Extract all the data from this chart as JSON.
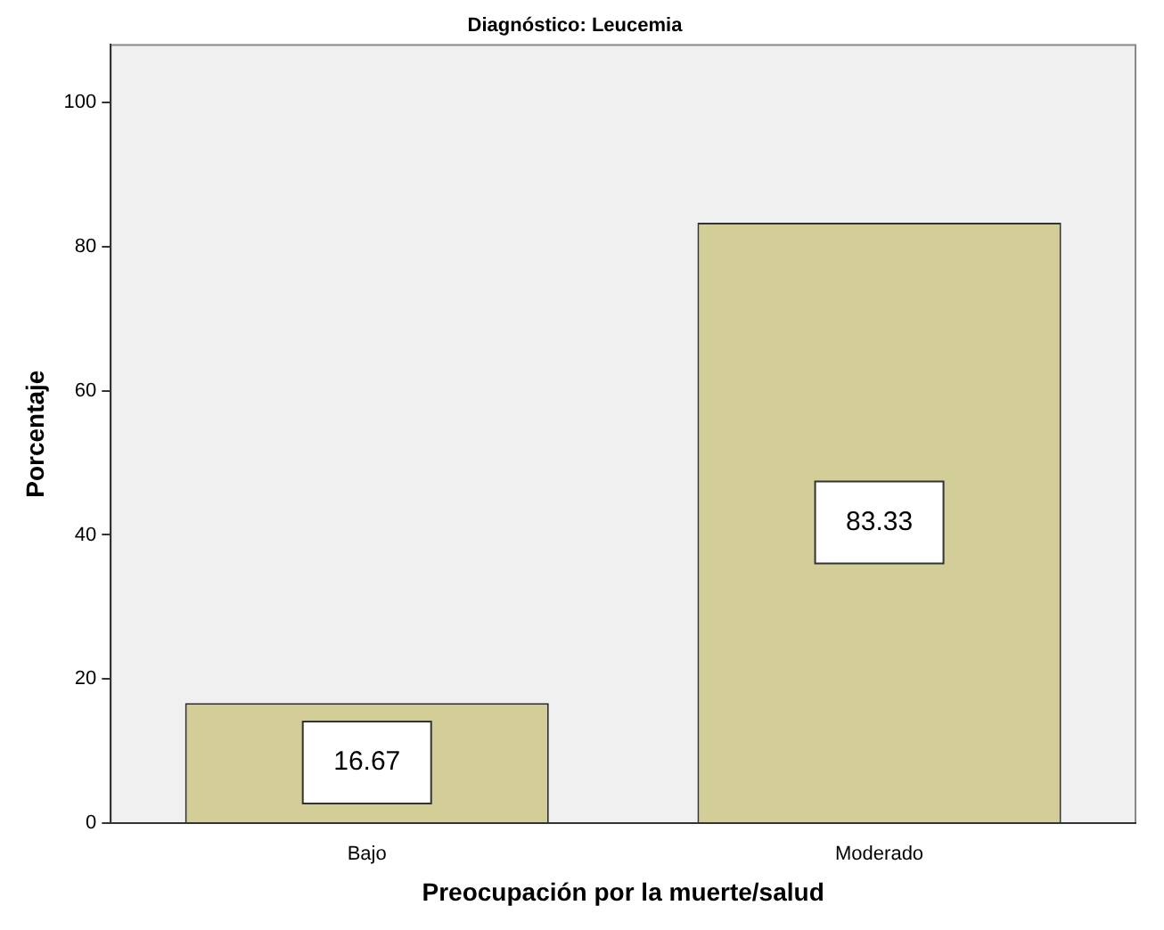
{
  "chart_data": {
    "type": "bar",
    "title": "Diagnóstico: Leucemia",
    "xlabel": "Preocupación por la muerte/salud",
    "ylabel": "Porcentaje",
    "categories": [
      "Bajo",
      "Moderado"
    ],
    "values": [
      16.67,
      83.33
    ],
    "color": "#d3ce97",
    "ylim": [
      0,
      108
    ],
    "yticks": [
      0,
      20,
      40,
      60,
      80,
      100
    ],
    "grid": false,
    "legend": false,
    "data_labels": true
  }
}
